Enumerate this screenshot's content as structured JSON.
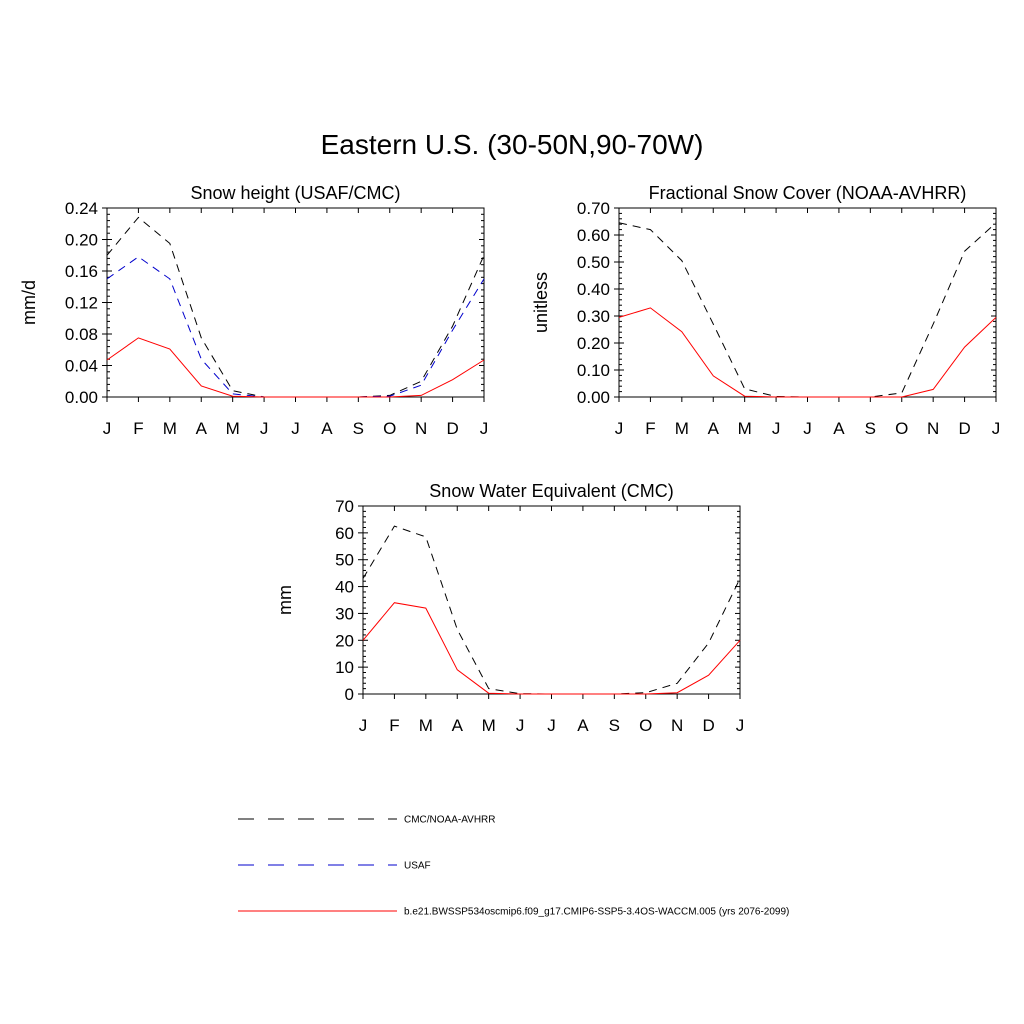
{
  "title": "Eastern U.S. (30-50N,90-70W)",
  "colors": {
    "cmc": "#000000",
    "usaf": "#0000cc",
    "model": "#ff0000",
    "axis": "#000000"
  },
  "legend": [
    {
      "label": "CMC/NOAA-AVHRR",
      "series": "cmc"
    },
    {
      "label": "USAF",
      "series": "usaf"
    },
    {
      "label": "b.e21.BWSSP534oscmip6.f09_g17.CMIP6-SSP5-3.4OS-WACCM.005 (yrs 2076-2099)",
      "series": "model"
    }
  ],
  "chart_data": [
    {
      "type": "line",
      "title": "Snow height (USAF/CMC)",
      "xlabel": "",
      "ylabel": "mm/d",
      "categories": [
        "J",
        "F",
        "M",
        "A",
        "M",
        "J",
        "J",
        "A",
        "S",
        "O",
        "N",
        "D",
        "J"
      ],
      "ylim": [
        0,
        0.24
      ],
      "yticks": [
        "0.00",
        "0.04",
        "0.08",
        "0.12",
        "0.16",
        "0.20",
        "0.24"
      ],
      "yticks_values": [
        0,
        0.04,
        0.08,
        0.12,
        0.16,
        0.2,
        0.24
      ],
      "series": [
        {
          "name": "CMC/NOAA-AVHRR",
          "key": "cmc",
          "values": [
            0.18,
            0.228,
            0.195,
            0.075,
            0.008,
            0.0,
            0.0,
            0.0,
            0.0,
            0.002,
            0.02,
            0.09,
            0.18
          ]
        },
        {
          "name": "USAF",
          "key": "usaf",
          "values": [
            0.15,
            0.178,
            0.15,
            0.048,
            0.004,
            0.0,
            0.0,
            0.0,
            0.0,
            0.001,
            0.015,
            0.085,
            0.15
          ]
        },
        {
          "name": "b.e21.BWSSP534oscmip6.f09_g17.CMIP6-SSP5-3.4OS-WACCM.005 (yrs 2076-2099)",
          "key": "model",
          "values": [
            0.047,
            0.075,
            0.061,
            0.014,
            0.001,
            0.0,
            0.0,
            0.0,
            0.0,
            0.0,
            0.002,
            0.022,
            0.047
          ]
        }
      ]
    },
    {
      "type": "line",
      "title": "Fractional Snow Cover (NOAA-AVHRR)",
      "xlabel": "",
      "ylabel": "unitless",
      "categories": [
        "J",
        "F",
        "M",
        "A",
        "M",
        "J",
        "J",
        "A",
        "S",
        "O",
        "N",
        "D",
        "J"
      ],
      "ylim": [
        0,
        0.7
      ],
      "yticks": [
        "0.00",
        "0.10",
        "0.20",
        "0.30",
        "0.40",
        "0.50",
        "0.60",
        "0.70"
      ],
      "yticks_values": [
        0,
        0.1,
        0.2,
        0.3,
        0.4,
        0.5,
        0.6,
        0.7
      ],
      "series": [
        {
          "name": "CMC/NOAA-AVHRR",
          "key": "cmc",
          "values": [
            0.645,
            0.62,
            0.505,
            0.27,
            0.03,
            0.002,
            0.0,
            0.0,
            0.0,
            0.015,
            0.27,
            0.54,
            0.645
          ]
        },
        {
          "name": "b.e21.BWSSP534oscmip6.f09_g17.CMIP6-SSP5-3.4OS-WACCM.005 (yrs 2076-2099)",
          "key": "model",
          "values": [
            0.295,
            0.33,
            0.242,
            0.078,
            0.003,
            0.0,
            0.0,
            0.0,
            0.0,
            0.0,
            0.028,
            0.185,
            0.295
          ]
        }
      ]
    },
    {
      "type": "line",
      "title": "Snow Water Equivalent (CMC)",
      "xlabel": "",
      "ylabel": "mm",
      "categories": [
        "J",
        "F",
        "M",
        "A",
        "M",
        "J",
        "J",
        "A",
        "S",
        "O",
        "N",
        "D",
        "J"
      ],
      "ylim": [
        0,
        70
      ],
      "yticks": [
        "0",
        "10",
        "20",
        "30",
        "40",
        "50",
        "60",
        "70"
      ],
      "yticks_values": [
        0,
        10,
        20,
        30,
        40,
        50,
        60,
        70
      ],
      "series": [
        {
          "name": "CMC/NOAA-AVHRR",
          "key": "cmc",
          "values": [
            43.0,
            62.5,
            58.5,
            24.0,
            2.0,
            0.1,
            0.0,
            0.0,
            0.0,
            0.5,
            4.0,
            19.0,
            43.0
          ]
        },
        {
          "name": "b.e21.BWSSP534oscmip6.f09_g17.CMIP6-SSP5-3.4OS-WACCM.005 (yrs 2076-2099)",
          "key": "model",
          "values": [
            20.0,
            34.0,
            32.0,
            9.0,
            0.3,
            0.0,
            0.0,
            0.0,
            0.0,
            0.0,
            0.5,
            7.0,
            20.0
          ]
        }
      ]
    }
  ]
}
